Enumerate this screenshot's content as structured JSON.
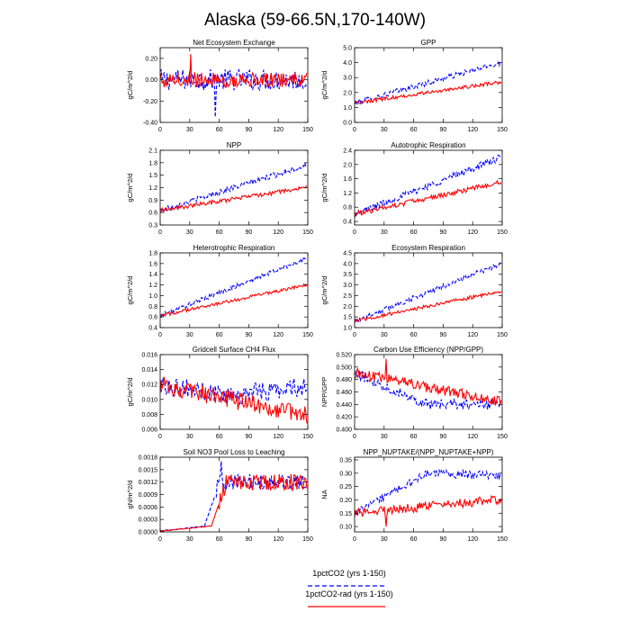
{
  "figure": {
    "title": "Alaska (59-66.5N,170-140W)",
    "colors": {
      "series_1": "#0000ff",
      "series_2": "#ff0000"
    },
    "legend": [
      {
        "label": "1pctCO2 (yrs 1-150)",
        "color": "#0000ff",
        "style": "dashed"
      },
      {
        "label": "1pctCO2-rad (yrs 1-150)",
        "color": "#ff0000",
        "style": "solid"
      }
    ],
    "legend_placement": "bottom-center"
  },
  "chart_data": [
    {
      "type": "line",
      "title": "Net Ecosystem Exchange",
      "ylabel": "gC/m^2/d",
      "xlim": [
        0,
        150
      ],
      "ylim": [
        -0.4,
        0.3
      ],
      "xticks": [
        0,
        30,
        60,
        90,
        120,
        150
      ],
      "yticks": [
        -0.4,
        -0.2,
        0.0,
        0.2
      ],
      "ytick_decimals": 2,
      "series": [
        {
          "name": "1pctCO2 (yrs 1-150)",
          "start": 0.0,
          "end": 0.0,
          "noise": 0.1,
          "spike": [
            56,
            -0.35
          ]
        },
        {
          "name": "1pctCO2-rad (yrs 1-150)",
          "start": 0.0,
          "end": 0.0,
          "noise": 0.07,
          "spike": [
            31,
            0.24
          ]
        }
      ]
    },
    {
      "type": "line",
      "title": "GPP",
      "ylabel": "gC/m^2/d",
      "xlim": [
        0,
        150
      ],
      "ylim": [
        0.0,
        5.0
      ],
      "xticks": [
        0,
        30,
        60,
        90,
        120,
        150
      ],
      "yticks": [
        0.0,
        1.0,
        2.0,
        3.0,
        4.0,
        5.0
      ],
      "ytick_decimals": 1,
      "series": [
        {
          "name": "1pctCO2 (yrs 1-150)",
          "start": 1.3,
          "end": 4.0,
          "noise": 0.18
        },
        {
          "name": "1pctCO2-rad (yrs 1-150)",
          "start": 1.3,
          "end": 2.7,
          "noise": 0.12
        }
      ]
    },
    {
      "type": "line",
      "title": "NPP",
      "ylabel": "gC/m^2/d",
      "xlim": [
        0,
        150
      ],
      "ylim": [
        0.3,
        2.1
      ],
      "xticks": [
        0,
        30,
        60,
        90,
        120,
        150
      ],
      "yticks": [
        0.3,
        0.6,
        0.9,
        1.2,
        1.5,
        1.8,
        2.1
      ],
      "ytick_decimals": 1,
      "series": [
        {
          "name": "1pctCO2 (yrs 1-150)",
          "start": 0.65,
          "end": 1.75,
          "noise": 0.07
        },
        {
          "name": "1pctCO2-rad (yrs 1-150)",
          "start": 0.65,
          "end": 1.2,
          "noise": 0.05
        }
      ]
    },
    {
      "type": "line",
      "title": "Autotrophic Respiration",
      "ylabel": "gC/m^2/d",
      "xlim": [
        0,
        150
      ],
      "ylim": [
        0.3,
        2.4
      ],
      "xticks": [
        0,
        30,
        60,
        90,
        120,
        150
      ],
      "yticks": [
        0.4,
        0.8,
        1.2,
        1.6,
        2.0,
        2.4
      ],
      "ytick_decimals": 1,
      "series": [
        {
          "name": "1pctCO2 (yrs 1-150)",
          "start": 0.6,
          "end": 2.2,
          "noise": 0.1
        },
        {
          "name": "1pctCO2-rad (yrs 1-150)",
          "start": 0.6,
          "end": 1.5,
          "noise": 0.07
        }
      ]
    },
    {
      "type": "line",
      "title": "Heterotrophic Respiration",
      "ylabel": "gC/m^2/d",
      "xlim": [
        0,
        150
      ],
      "ylim": [
        0.4,
        1.8
      ],
      "xticks": [
        0,
        30,
        60,
        90,
        120,
        150
      ],
      "yticks": [
        0.4,
        0.6,
        0.8,
        1.0,
        1.2,
        1.4,
        1.6,
        1.8
      ],
      "ytick_decimals": 1,
      "series": [
        {
          "name": "1pctCO2 (yrs 1-150)",
          "start": 0.62,
          "end": 1.7,
          "noise": 0.04
        },
        {
          "name": "1pctCO2-rad (yrs 1-150)",
          "start": 0.62,
          "end": 1.2,
          "noise": 0.03
        }
      ]
    },
    {
      "type": "line",
      "title": "Ecosystem Respiration",
      "ylabel": "gC/m^2/d",
      "xlim": [
        0,
        150
      ],
      "ylim": [
        1.0,
        4.5
      ],
      "xticks": [
        0,
        30,
        60,
        90,
        120,
        150
      ],
      "yticks": [
        1.0,
        1.5,
        2.0,
        2.5,
        3.0,
        3.5,
        4.0,
        4.5
      ],
      "ytick_decimals": 1,
      "series": [
        {
          "name": "1pctCO2 (yrs 1-150)",
          "start": 1.3,
          "end": 4.0,
          "noise": 0.12
        },
        {
          "name": "1pctCO2-rad (yrs 1-150)",
          "start": 1.3,
          "end": 2.7,
          "noise": 0.08
        }
      ]
    },
    {
      "type": "line",
      "title": "Gridcell Surface CH4 Flux",
      "ylabel": "gC/m^2/d",
      "xlim": [
        0,
        150
      ],
      "ylim": [
        0.006,
        0.016
      ],
      "xticks": [
        0,
        30,
        60,
        90,
        120,
        150
      ],
      "yticks": [
        0.006,
        0.008,
        0.01,
        0.012,
        0.014,
        0.016
      ],
      "ytick_labels": [
        "0.006",
        "0.008",
        "0.010",
        "0.012",
        "0.014",
        "0.016"
      ],
      "series": [
        {
          "name": "1pctCO2 (yrs 1-150)",
          "start": 0.012,
          "mid": 0.0105,
          "end": 0.0118,
          "noise": 0.0013
        },
        {
          "name": "1pctCO2-rad (yrs 1-150)",
          "start": 0.012,
          "end": 0.0078,
          "noise": 0.0012
        }
      ]
    },
    {
      "type": "line",
      "title": "Carbon Use Efficiency (NPP/GPP)",
      "ylabel": "NPP/GPP",
      "xlim": [
        0,
        150
      ],
      "ylim": [
        0.4,
        0.52
      ],
      "xticks": [
        0,
        30,
        60,
        90,
        120,
        150
      ],
      "yticks": [
        0.4,
        0.42,
        0.44,
        0.46,
        0.48,
        0.5,
        0.52
      ],
      "ytick_decimals": 3,
      "series": [
        {
          "name": "1pctCO2 (yrs 1-150)",
          "start": 0.49,
          "mid": 0.44,
          "end": 0.44,
          "noise": 0.008
        },
        {
          "name": "1pctCO2-rad (yrs 1-150)",
          "start": 0.49,
          "end": 0.445,
          "noise": 0.009,
          "spike": [
            32,
            0.513
          ]
        }
      ]
    },
    {
      "type": "line",
      "title": "Soil NO3 Pool Loss to Leaching",
      "ylabel": "gN/m^2/d",
      "xlim": [
        0,
        150
      ],
      "ylim": [
        0.0,
        0.0018
      ],
      "xticks": [
        0,
        30,
        60,
        90,
        120,
        150
      ],
      "yticks": [
        0,
        0.0003,
        0.0006,
        0.0009,
        0.0012,
        0.0015,
        0.0018
      ],
      "ytick_labels": [
        "0.0000",
        "0.0003",
        "0.0006",
        "0.0009",
        "0.0012",
        "0.0015",
        "0.0018"
      ],
      "series": [
        {
          "name": "1pctCO2 (yrs 1-150)",
          "start": 2e-05,
          "rise_at": 45,
          "plateau": 0.0012,
          "end": 0.0012,
          "noise": 0.0002,
          "spike": [
            62,
            0.0017
          ]
        },
        {
          "name": "1pctCO2-rad (yrs 1-150)",
          "start": 2e-05,
          "rise_at": 52,
          "plateau": 0.0012,
          "end": 0.0012,
          "noise": 0.0002
        }
      ]
    },
    {
      "type": "line",
      "title": "NPP_NUPTAKE/(NPP_NUPTAKE+NPP)",
      "ylabel": "NA",
      "xlim": [
        0,
        150
      ],
      "ylim": [
        0.08,
        0.36
      ],
      "xticks": [
        0,
        30,
        60,
        90,
        120,
        150
      ],
      "yticks": [
        0.1,
        0.15,
        0.2,
        0.25,
        0.3,
        0.35
      ],
      "ytick_decimals": 2,
      "series": [
        {
          "name": "1pctCO2 (yrs 1-150)",
          "start": 0.15,
          "mid": 0.3,
          "end": 0.29,
          "noise": 0.015
        },
        {
          "name": "1pctCO2-rad (yrs 1-150)",
          "start": 0.15,
          "end": 0.2,
          "noise": 0.018,
          "spike": [
            32,
            0.1
          ]
        }
      ]
    }
  ]
}
